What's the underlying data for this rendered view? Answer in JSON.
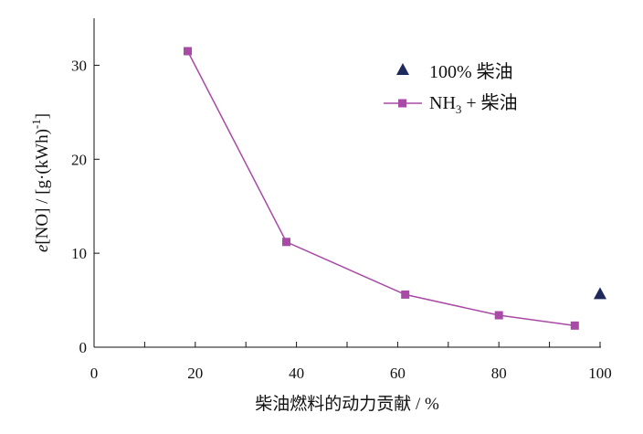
{
  "chart_data": {
    "type": "scatter",
    "title": "",
    "xlabel": "柴油燃料的动力贡献 / %",
    "ylabel_parts": {
      "italic": "e",
      "main": "[NO] / [g·(kWh)",
      "sup": "-1",
      "end": "]"
    },
    "xlim": [
      0,
      100
    ],
    "ylim": [
      0,
      35
    ],
    "x_ticks": [
      0,
      20,
      40,
      60,
      80,
      100
    ],
    "y_ticks": [
      0,
      10,
      20,
      30
    ],
    "grid": false,
    "legend_position": "top-right",
    "series": [
      {
        "name": "100% 柴油",
        "marker": "triangle",
        "color": "#1f2a5c",
        "line": false,
        "x": [
          100
        ],
        "y": [
          5.7
        ]
      },
      {
        "name_parts": {
          "main": "NH",
          "sub": "3",
          "rest": " + 柴油"
        },
        "marker": "square",
        "color": "#a84aa6",
        "line": true,
        "x": [
          18.5,
          38,
          61.5,
          80,
          95
        ],
        "y": [
          31.5,
          11.2,
          5.6,
          3.4,
          2.3
        ]
      }
    ]
  }
}
